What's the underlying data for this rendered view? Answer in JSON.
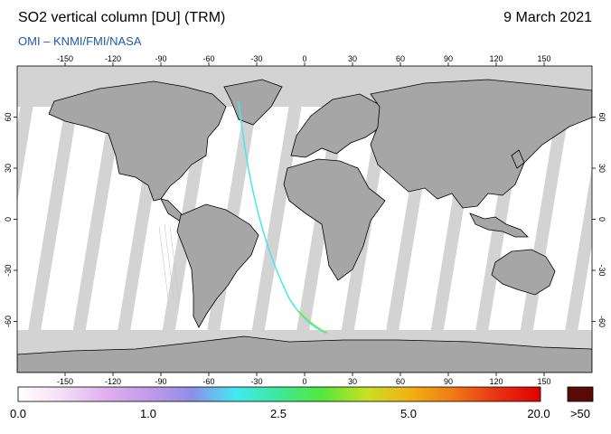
{
  "header": {
    "title": "SO2 vertical column [DU] (TRM)",
    "date": "9 March 2021",
    "subtitle": "OMI  –  KNMI/FMI/NASA"
  },
  "map": {
    "lon_ticks_top": [
      "-150",
      "-120",
      "-90",
      "-60",
      "-30",
      "0",
      "30",
      "60",
      "90",
      "120",
      "150"
    ],
    "lon_ticks_bottom": [
      "-150",
      "-120",
      "-90",
      "-60",
      "-30",
      "0",
      "30",
      "60",
      "90",
      "120",
      "150"
    ],
    "lat_ticks_left": [
      "60",
      "30",
      "0",
      "-30",
      "-60"
    ],
    "lat_ticks_right": [
      "60",
      "30",
      "0",
      "-30",
      "-60"
    ],
    "lon_values": [
      -150,
      -120,
      -90,
      -60,
      -30,
      0,
      30,
      60,
      90,
      120,
      150
    ],
    "lat_values": [
      60,
      30,
      0,
      -30,
      -60
    ],
    "colors": {
      "no_data": "#d3d3d3",
      "land": "#a6a6a6",
      "coast": "#000000",
      "swath_background": "#ffffff"
    }
  },
  "colorbar": {
    "labels": [
      "0.0",
      "1.0",
      "2.5",
      "5.0",
      "20.0",
      ">50"
    ],
    "stops": [
      "#ffffff",
      "#f4dff5",
      "#e0b0ee",
      "#c29be8",
      "#8e8ee8",
      "#43e8f2",
      "#3ee898",
      "#55e83a",
      "#c8e024",
      "#f0b214",
      "#f07a14",
      "#e83214",
      "#e00000"
    ],
    "overflow_color": "#5a0a05"
  }
}
